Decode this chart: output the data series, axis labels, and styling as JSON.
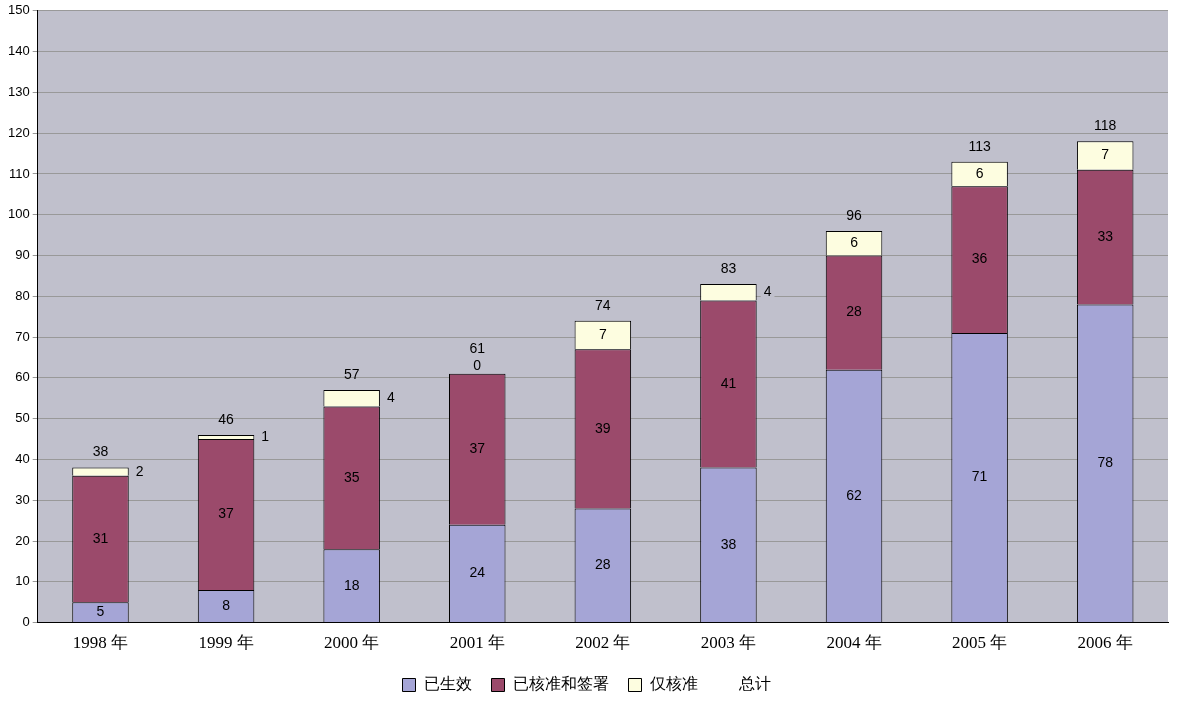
{
  "chart_data": {
    "type": "bar",
    "stacked": true,
    "categories": [
      "1998 年",
      "1999 年",
      "2000 年",
      "2001 年",
      "2002 年",
      "2003 年",
      "2004 年",
      "2005 年",
      "2006 年"
    ],
    "series": [
      {
        "name": "已生效",
        "color": "#a5a5d6",
        "values": [
          5,
          8,
          18,
          24,
          28,
          38,
          62,
          71,
          78
        ]
      },
      {
        "name": "已核准和签署",
        "color": "#9b4a6b",
        "values": [
          31,
          37,
          35,
          37,
          39,
          41,
          28,
          36,
          33
        ]
      },
      {
        "name": "仅核准",
        "color": "#fdfde0",
        "values": [
          2,
          1,
          4,
          0,
          7,
          4,
          6,
          6,
          7
        ]
      }
    ],
    "totals": [
      "38",
      "46",
      "57",
      "61",
      "74",
      "83",
      "96",
      "113",
      "118"
    ],
    "annotations": [
      "总计"
    ],
    "ylim": [
      0,
      150
    ],
    "yticks": [
      0,
      10,
      20,
      30,
      40,
      50,
      60,
      70,
      80,
      90,
      100,
      110,
      120,
      130,
      140,
      150
    ],
    "grid": "y",
    "legend": "bottom",
    "data_labels": true
  }
}
